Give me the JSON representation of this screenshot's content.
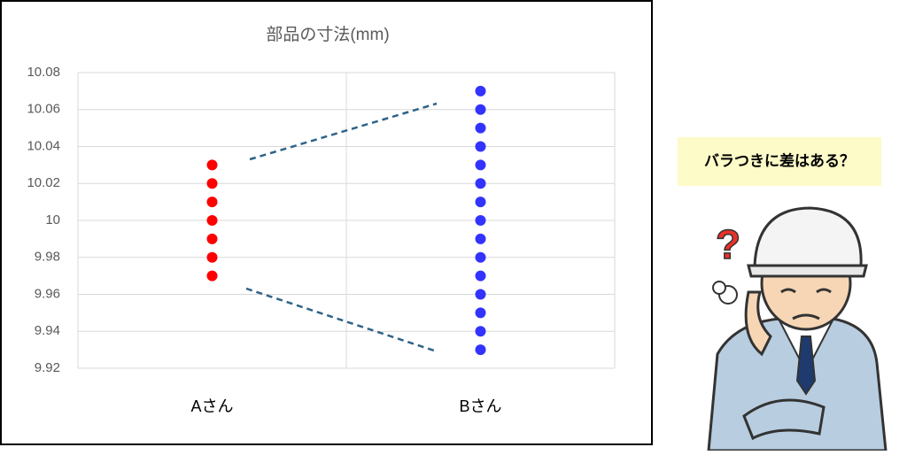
{
  "chart_data": {
    "type": "strip",
    "title": "部品の寸法(mm)",
    "categories": [
      "Aさん",
      "Bさん"
    ],
    "series": [
      {
        "color": "#ff0000",
        "values": [
          10.03,
          10.02,
          10.01,
          10,
          9.99,
          9.98,
          9.97
        ]
      },
      {
        "color": "#3333ff",
        "values": [
          10.07,
          10.06,
          10.05,
          10.04,
          10.03,
          10.02,
          10.01,
          10,
          9.99,
          9.98,
          9.97,
          9.96,
          9.95,
          9.94,
          9.93
        ]
      }
    ],
    "ylim": [
      9.92,
      10.08
    ],
    "yticks": [
      9.92,
      9.94,
      9.96,
      9.98,
      10,
      10.02,
      10.04,
      10.06,
      10.08
    ],
    "grid": true
  },
  "callout": {
    "text": "バラつきに差はある？"
  }
}
